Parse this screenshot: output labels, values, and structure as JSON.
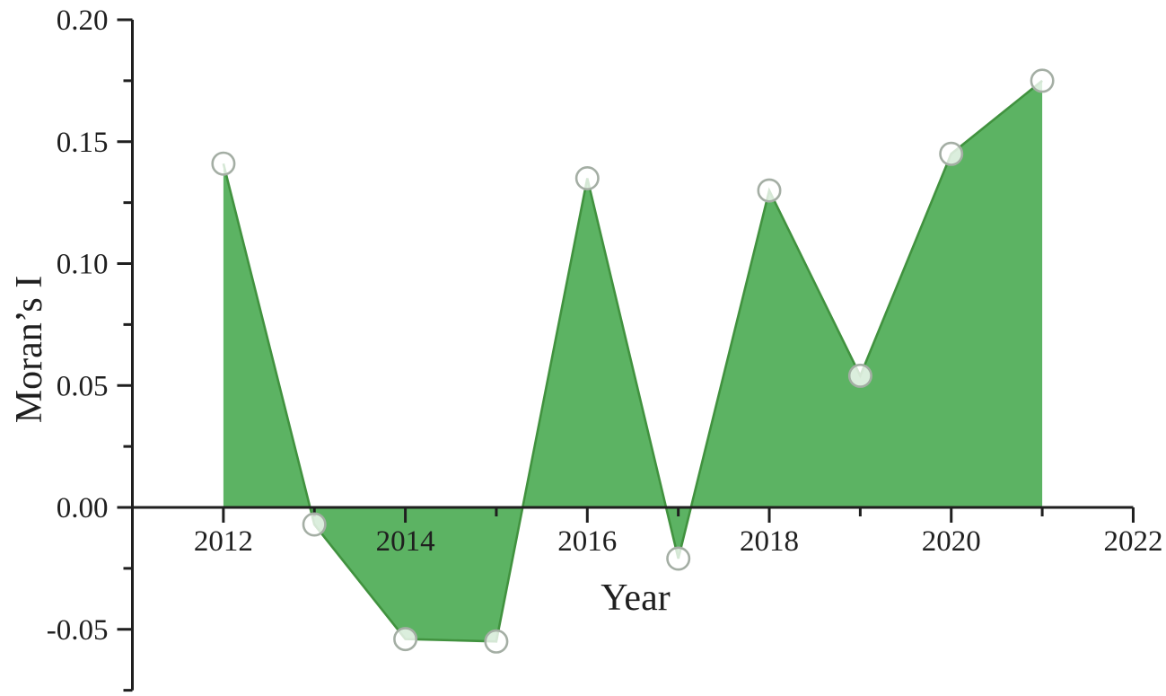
{
  "chart_data": {
    "type": "area",
    "title": "",
    "xlabel": "Year",
    "ylabel": "Moran’s I",
    "x": [
      2012,
      2013,
      2014,
      2015,
      2016,
      2017,
      2018,
      2019,
      2020,
      2021
    ],
    "values": [
      0.141,
      -0.007,
      -0.054,
      -0.055,
      0.135,
      -0.021,
      0.13,
      0.054,
      0.145,
      0.175
    ],
    "baseline": 0,
    "xlim": [
      2011,
      2022
    ],
    "ylim": [
      -0.075,
      0.2
    ],
    "x_major_ticks": [
      2012,
      2014,
      2016,
      2018,
      2020,
      2022
    ],
    "x_tick_labels": [
      "2012",
      "2014",
      "2016",
      "2018",
      "2020",
      "2022"
    ],
    "x_minor_ticks": [
      2013,
      2015,
      2017,
      2019,
      2021
    ],
    "y_major_ticks": [
      0.2,
      0.15,
      0.1,
      0.05,
      0.0,
      -0.05
    ],
    "y_tick_labels": [
      "0.20",
      "0.15",
      "0.10",
      "0.05",
      "0.00",
      "-0.05"
    ],
    "y_minor_ticks": [
      0.175,
      0.125,
      0.075,
      0.025,
      -0.025,
      -0.075
    ],
    "grid": false,
    "legend": false,
    "marker_shape": "open-circle",
    "colors": {
      "fill": "#5cb363",
      "line": "#41923f",
      "marker_fill": "#ffffff",
      "marker_stroke": "#a4aea4",
      "axis": "#1f1f1f",
      "text": "#1f1f1f",
      "background": "#ffffff"
    }
  }
}
